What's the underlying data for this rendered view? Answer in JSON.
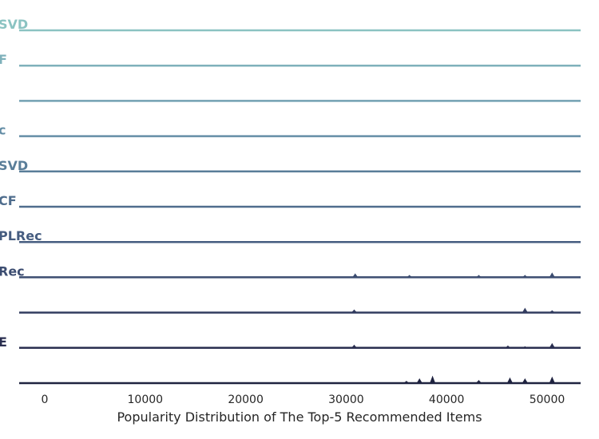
{
  "chart_data": {
    "type": "area",
    "style": "ridgeline",
    "title": "",
    "xlabel": "Popularity Distribution of The Top-5 Recommended Items",
    "ylabel": "",
    "xlim": [
      -2500,
      53500
    ],
    "xticks": [
      0,
      10000,
      20000,
      30000,
      40000,
      50000
    ],
    "xtick_labels": [
      "0",
      "10000",
      "20000",
      "30000",
      "40000",
      "50000"
    ],
    "grid": false,
    "series": [
      {
        "label": "SVD",
        "color": "#8bc3c2",
        "peaks": []
      },
      {
        "label": "F",
        "color": "#7fb1bb",
        "peaks": []
      },
      {
        "label": "",
        "color": "#72a0b2",
        "peaks": []
      },
      {
        "label": "c",
        "color": "#658ea6",
        "peaks": []
      },
      {
        "label": "SVD",
        "color": "#5a7e99",
        "peaks": []
      },
      {
        "label": "CF",
        "color": "#4f6d8d",
        "peaks": []
      },
      {
        "label": "PLRec",
        "color": "#465d80",
        "peaks": []
      },
      {
        "label": "Rec",
        "color": "#3c4d71",
        "peaks": [
          {
            "x": 30900,
            "h": 4
          },
          {
            "x": 36300,
            "h": 2
          },
          {
            "x": 43200,
            "h": 2
          },
          {
            "x": 47800,
            "h": 2
          },
          {
            "x": 50500,
            "h": 5
          }
        ]
      },
      {
        "label": "",
        "color": "#333d60",
        "peaks": [
          {
            "x": 30800,
            "h": 3
          },
          {
            "x": 47800,
            "h": 5
          },
          {
            "x": 50500,
            "h": 2
          }
        ]
      },
      {
        "label": "E",
        "color": "#2a2f50",
        "peaks": [
          {
            "x": 30800,
            "h": 3
          },
          {
            "x": 46100,
            "h": 2
          },
          {
            "x": 47800,
            "h": 1
          },
          {
            "x": 50500,
            "h": 5
          }
        ]
      },
      {
        "label": "",
        "color": "#1f2340",
        "peaks": [
          {
            "x": 36000,
            "h": 2
          },
          {
            "x": 37300,
            "h": 5
          },
          {
            "x": 38600,
            "h": 8
          },
          {
            "x": 43200,
            "h": 3
          },
          {
            "x": 46300,
            "h": 6
          },
          {
            "x": 47800,
            "h": 5
          },
          {
            "x": 50500,
            "h": 7
          }
        ]
      }
    ]
  }
}
